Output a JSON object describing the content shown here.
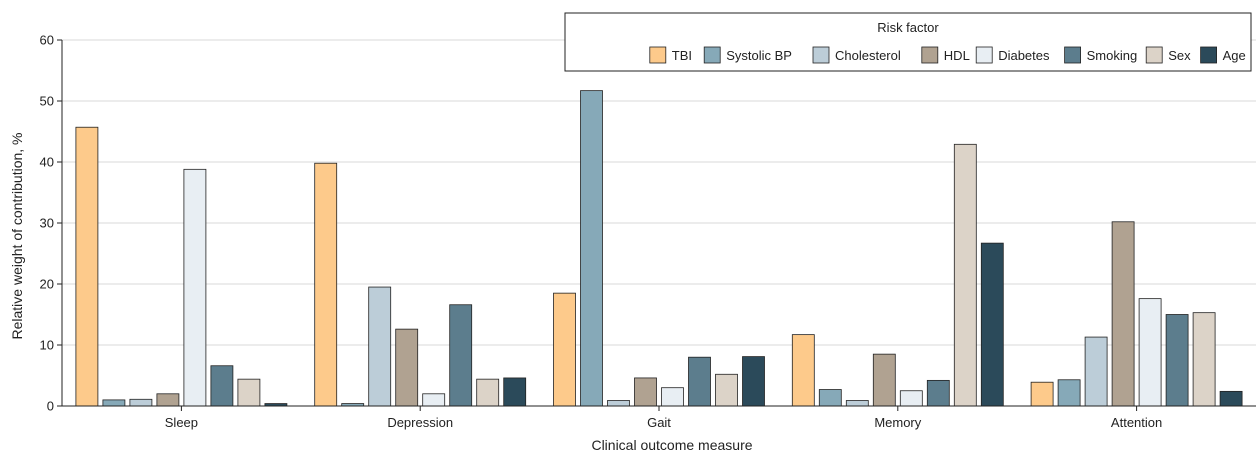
{
  "chart_data": {
    "type": "bar",
    "title": "",
    "xlabel": "Clinical outcome measure",
    "ylabel": "Relative weight of contribution, %",
    "ylim": [
      0,
      60
    ],
    "yticks": [
      0,
      10,
      20,
      30,
      40,
      50,
      60
    ],
    "grid": true,
    "legend_title": "Risk factor",
    "legend_position": "top-right",
    "categories": [
      "Sleep",
      "Depression",
      "Gait",
      "Memory",
      "Attention"
    ],
    "series": [
      {
        "name": "TBI",
        "color": "#fdca8b",
        "values": [
          45.7,
          39.8,
          18.5,
          11.7,
          3.9
        ]
      },
      {
        "name": "Systolic BP",
        "color": "#86a9b8",
        "values": [
          1.0,
          0.4,
          51.7,
          2.7,
          4.3
        ]
      },
      {
        "name": "Cholesterol",
        "color": "#bccdd8",
        "values": [
          1.1,
          19.5,
          0.9,
          0.9,
          11.3
        ]
      },
      {
        "name": "HDL",
        "color": "#b0a291",
        "values": [
          2.0,
          12.6,
          4.6,
          8.5,
          30.2
        ]
      },
      {
        "name": "Diabetes",
        "color": "#e8eef3",
        "values": [
          38.8,
          2.0,
          3.0,
          2.5,
          17.6
        ]
      },
      {
        "name": "Smoking",
        "color": "#5c7d8d",
        "values": [
          6.6,
          16.6,
          8.0,
          4.2,
          15.0
        ]
      },
      {
        "name": "Sex",
        "color": "#dcd3c8",
        "values": [
          4.4,
          4.4,
          5.2,
          42.9,
          15.3
        ]
      },
      {
        "name": "Age",
        "color": "#2b4a5a",
        "values": [
          0.4,
          4.6,
          8.1,
          26.7,
          2.4
        ]
      }
    ]
  }
}
